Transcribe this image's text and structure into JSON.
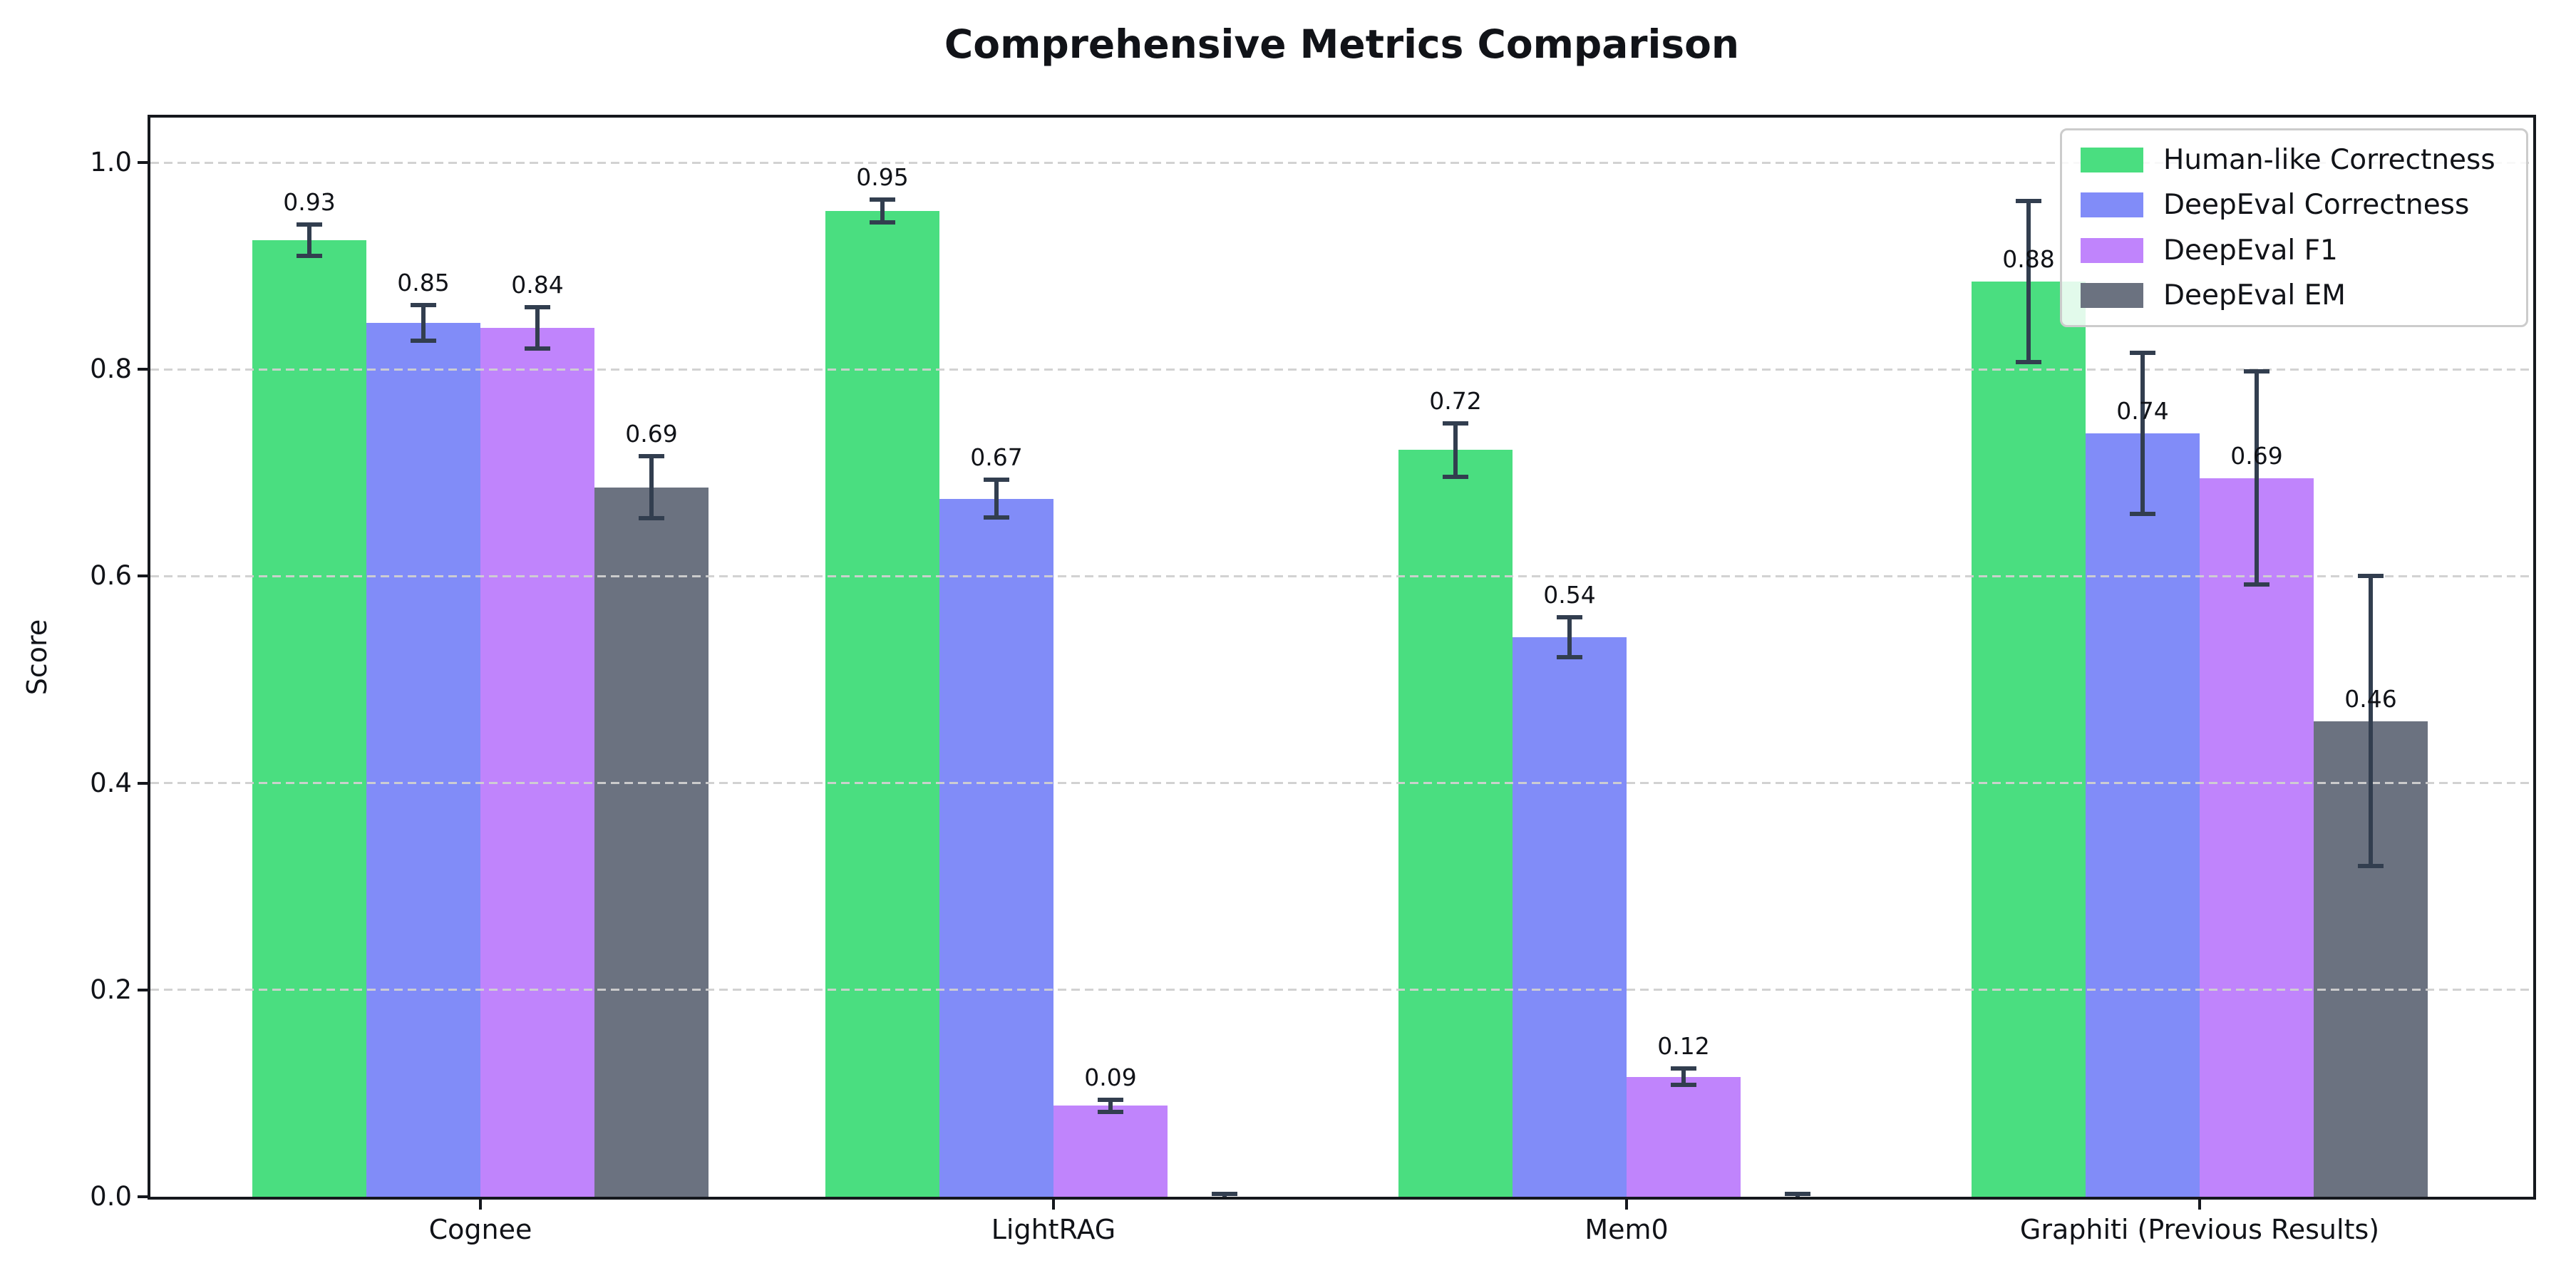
{
  "chart_data": {
    "type": "bar",
    "title": "Comprehensive Metrics Comparison",
    "xlabel": "",
    "ylabel": "Score",
    "categories": [
      "Cognee",
      "LightRAG",
      "Mem0",
      "Graphiti (Previous Results)"
    ],
    "series": [
      {
        "name": "Human-like Correctness",
        "color": "#4ade80",
        "values": [
          0.925,
          0.953,
          0.722,
          0.885
        ],
        "errors": [
          0.015,
          0.011,
          0.026,
          0.078
        ],
        "labels": [
          "0.93",
          "0.95",
          "0.72",
          "0.88"
        ]
      },
      {
        "name": "DeepEval Correctness",
        "color": "#818cf8",
        "values": [
          0.845,
          0.675,
          0.541,
          0.738
        ],
        "errors": [
          0.017,
          0.018,
          0.019,
          0.078
        ],
        "labels": [
          "0.85",
          "0.67",
          "0.54",
          "0.74"
        ]
      },
      {
        "name": "DeepEval F1",
        "color": "#c084fc",
        "values": [
          0.84,
          0.088,
          0.116,
          0.695
        ],
        "errors": [
          0.02,
          0.006,
          0.008,
          0.103
        ],
        "labels": [
          "0.84",
          "0.09",
          "0.12",
          "0.69"
        ]
      },
      {
        "name": "DeepEval EM",
        "color": "#6b7280",
        "values": [
          0.686,
          0.001,
          0.001,
          0.46
        ],
        "errors": [
          0.03,
          0.002,
          0.002,
          0.14
        ],
        "labels": [
          "0.69",
          null,
          null,
          "0.46"
        ]
      }
    ],
    "yticks": [
      "0.0",
      "0.2",
      "0.4",
      "0.6",
      "0.8",
      "1.0"
    ],
    "ylim": [
      0,
      1.05
    ],
    "grid": "horizontal-dashed-above-bars",
    "legend_position": "upper-right",
    "error_color": "#323e4f",
    "grid_color": "#d0d0d0",
    "axis_color": "#15181d"
  }
}
